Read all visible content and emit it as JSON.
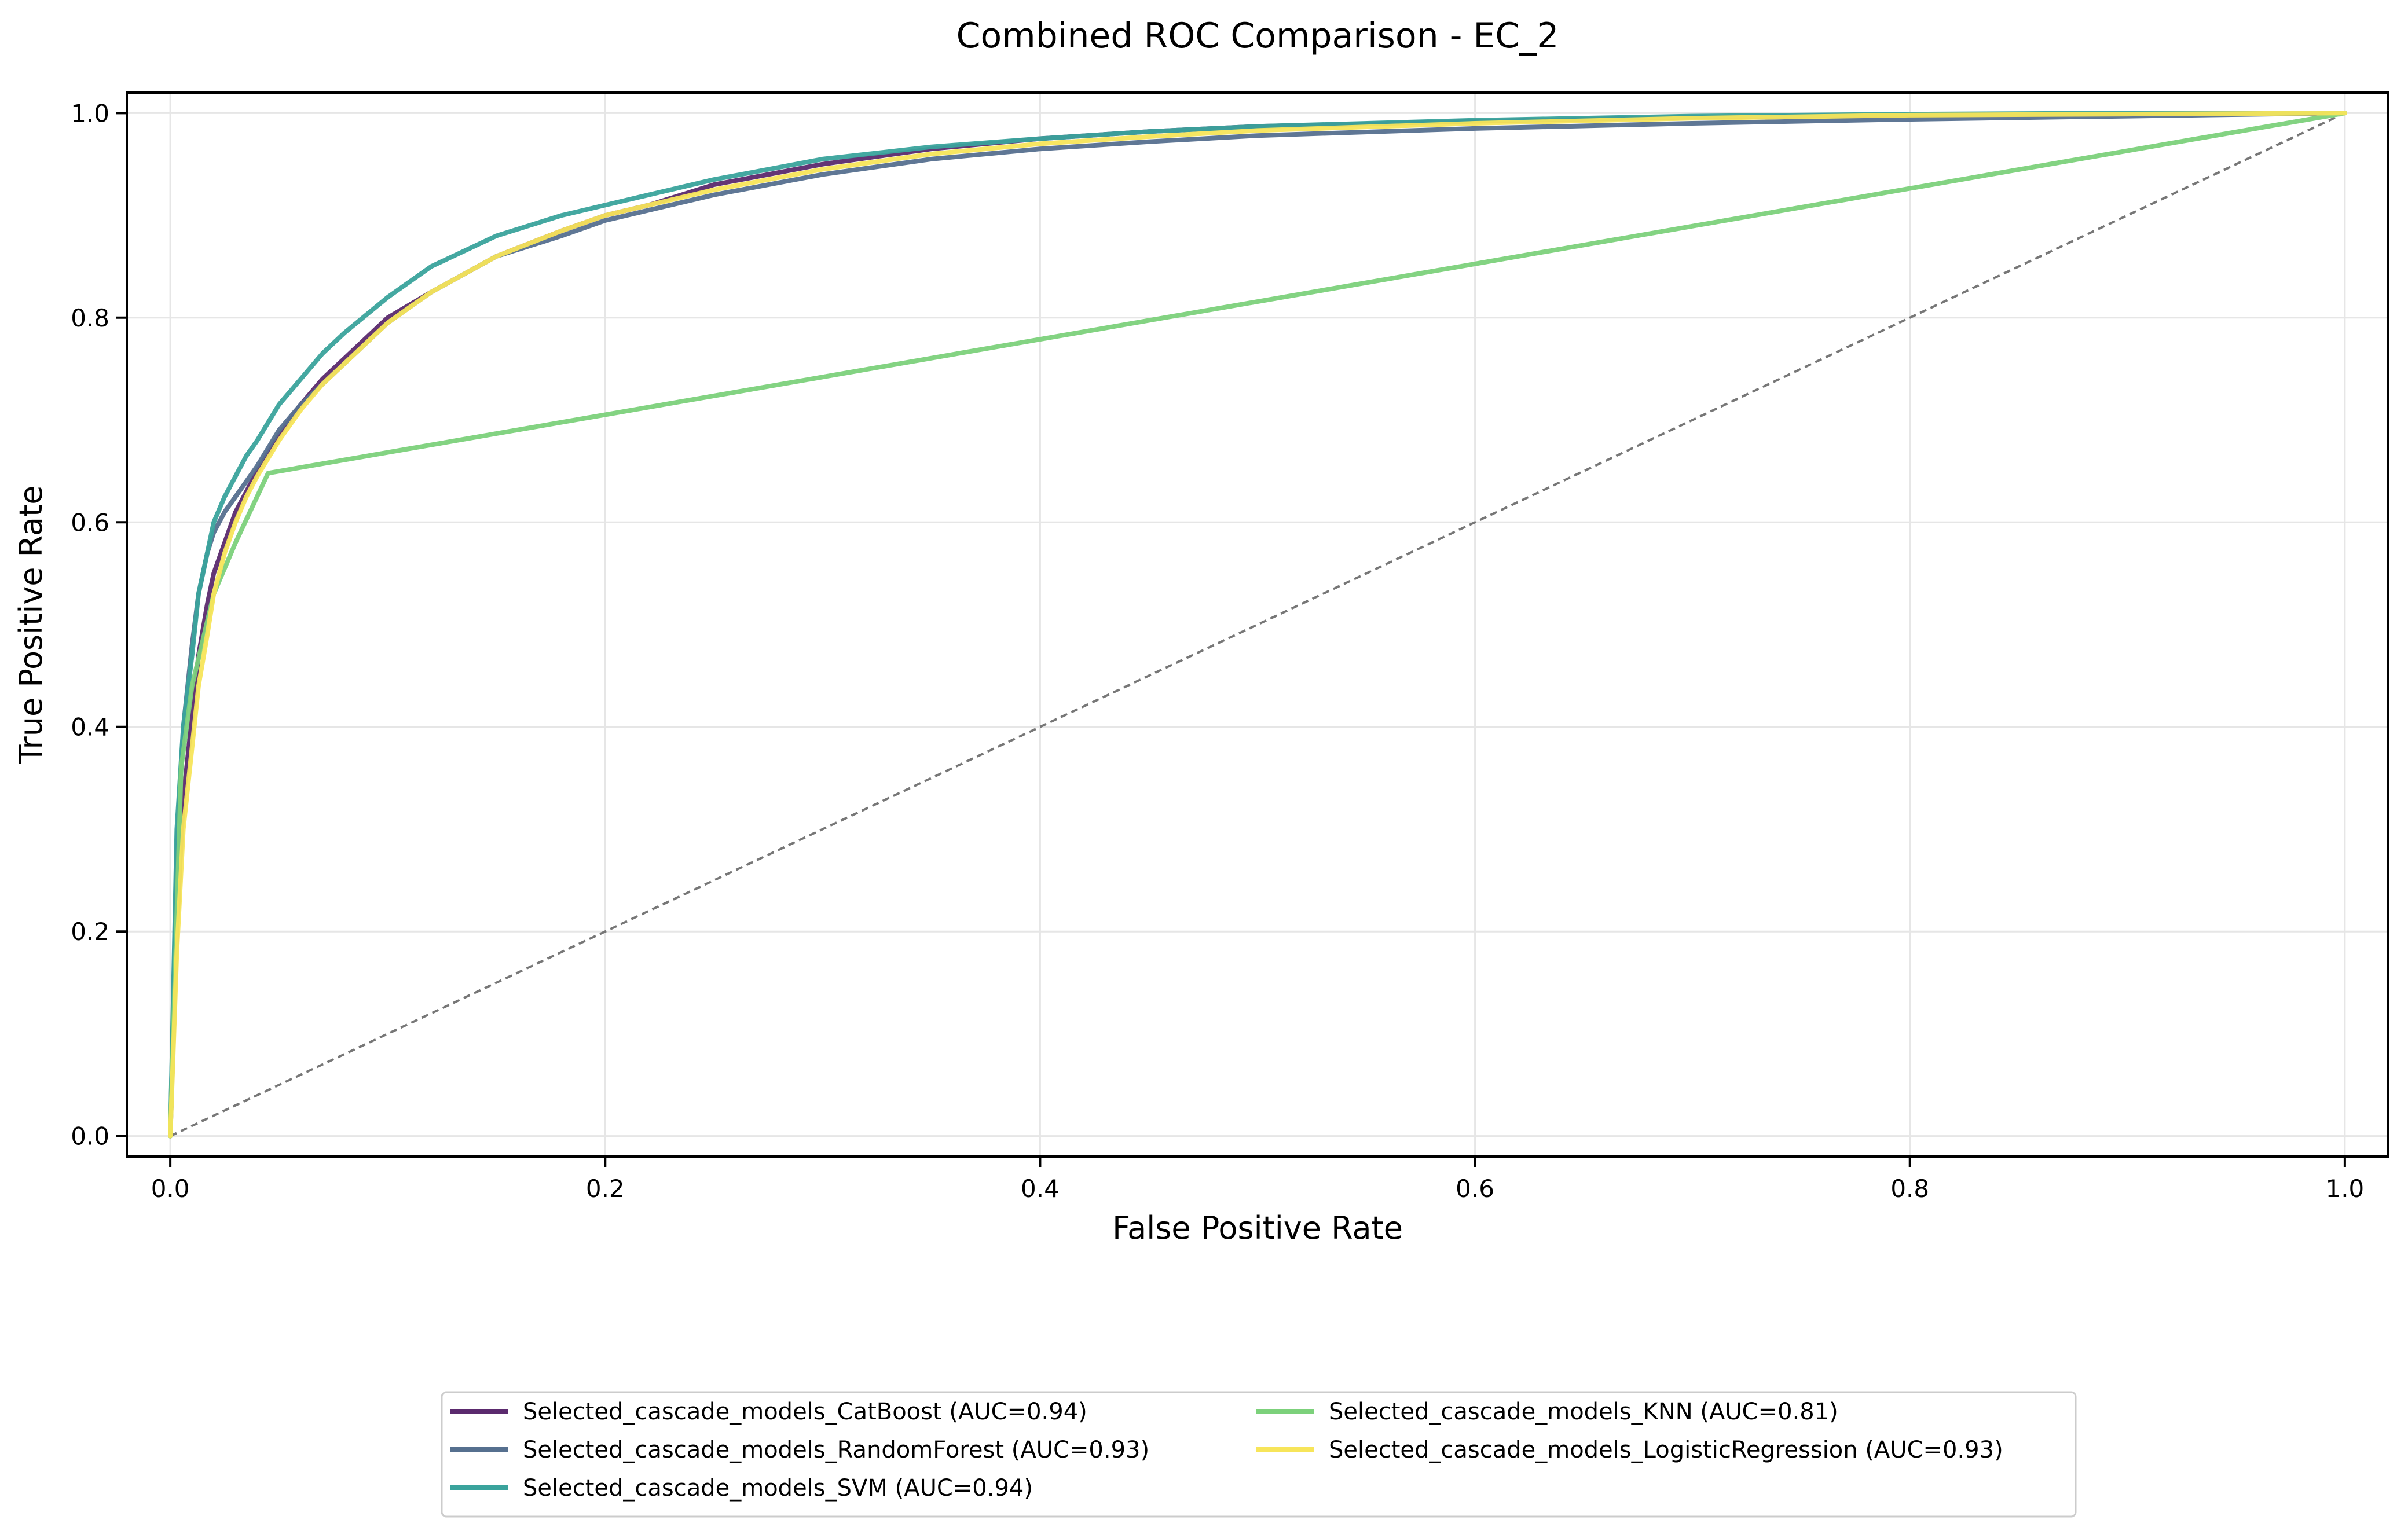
{
  "chart_data": {
    "type": "line",
    "title": "Combined ROC Comparison - EC_2",
    "xlabel": "False Positive Rate",
    "ylabel": "True Positive Rate",
    "xlim": [
      -0.02,
      1.02
    ],
    "ylim": [
      -0.02,
      1.02
    ],
    "x_ticks": [
      0.0,
      0.2,
      0.4,
      0.6,
      0.8,
      1.0
    ],
    "x_tick_labels": [
      "0.0",
      "0.2",
      "0.4",
      "0.6",
      "0.8",
      "1.0"
    ],
    "y_ticks": [
      0.0,
      0.2,
      0.4,
      0.6,
      0.8,
      1.0
    ],
    "y_tick_labels": [
      "0.0",
      "0.2",
      "0.4",
      "0.6",
      "0.8",
      "1.0"
    ],
    "grid": true,
    "legend_position": "bottom-center",
    "series": [
      {
        "name": "Selected_cascade_models_CatBoost (AUC=0.94)",
        "color": "#5b2a6e",
        "x": [
          0,
          0.003,
          0.006,
          0.01,
          0.013,
          0.017,
          0.02,
          0.025,
          0.03,
          0.035,
          0.04,
          0.05,
          0.06,
          0.07,
          0.08,
          0.1,
          0.12,
          0.15,
          0.18,
          0.2,
          0.22,
          0.25,
          0.3,
          0.35,
          0.4,
          0.45,
          0.5,
          0.6,
          0.7,
          0.8,
          0.9,
          1.0
        ],
        "y": [
          0,
          0.2,
          0.33,
          0.41,
          0.47,
          0.52,
          0.55,
          0.58,
          0.61,
          0.63,
          0.65,
          0.685,
          0.715,
          0.74,
          0.76,
          0.8,
          0.825,
          0.86,
          0.885,
          0.9,
          0.91,
          0.93,
          0.95,
          0.965,
          0.975,
          0.982,
          0.987,
          0.992,
          0.996,
          0.998,
          0.999,
          1.0
        ]
      },
      {
        "name": "Selected_cascade_models_RandomForest (AUC=0.93)",
        "color": "#56708f",
        "x": [
          0,
          0.003,
          0.006,
          0.01,
          0.013,
          0.017,
          0.02,
          0.025,
          0.03,
          0.035,
          0.04,
          0.05,
          0.06,
          0.07,
          0.08,
          0.1,
          0.12,
          0.15,
          0.18,
          0.2,
          0.22,
          0.25,
          0.3,
          0.35,
          0.4,
          0.45,
          0.5,
          0.6,
          0.7,
          0.8,
          0.9,
          1.0
        ],
        "y": [
          0,
          0.28,
          0.4,
          0.48,
          0.53,
          0.57,
          0.59,
          0.61,
          0.625,
          0.64,
          0.655,
          0.69,
          0.715,
          0.735,
          0.755,
          0.795,
          0.825,
          0.86,
          0.88,
          0.895,
          0.905,
          0.92,
          0.94,
          0.955,
          0.965,
          0.972,
          0.978,
          0.985,
          0.99,
          0.994,
          0.997,
          1.0
        ]
      },
      {
        "name": "Selected_cascade_models_SVM (AUC=0.94)",
        "color": "#3aa39c",
        "x": [
          0,
          0.003,
          0.006,
          0.01,
          0.013,
          0.017,
          0.02,
          0.025,
          0.03,
          0.035,
          0.04,
          0.05,
          0.06,
          0.07,
          0.08,
          0.1,
          0.12,
          0.15,
          0.18,
          0.2,
          0.22,
          0.25,
          0.3,
          0.35,
          0.4,
          0.45,
          0.5,
          0.6,
          0.7,
          0.8,
          0.9,
          1.0
        ],
        "y": [
          0,
          0.3,
          0.4,
          0.47,
          0.53,
          0.57,
          0.6,
          0.625,
          0.645,
          0.665,
          0.68,
          0.715,
          0.74,
          0.765,
          0.785,
          0.82,
          0.85,
          0.88,
          0.9,
          0.91,
          0.92,
          0.935,
          0.955,
          0.967,
          0.975,
          0.982,
          0.987,
          0.993,
          0.997,
          0.999,
          1.0,
          1.0
        ]
      },
      {
        "name": "Selected_cascade_models_KNN (AUC=0.81)",
        "color": "#7cd17b",
        "x": [
          0,
          0.005,
          0.01,
          0.02,
          0.03,
          0.045,
          1.0
        ],
        "y": [
          0,
          0.36,
          0.44,
          0.53,
          0.58,
          0.648,
          1.0
        ]
      },
      {
        "name": "Selected_cascade_models_LogisticRegression (AUC=0.93)",
        "color": "#f7e55a",
        "x": [
          0,
          0.003,
          0.006,
          0.01,
          0.013,
          0.017,
          0.02,
          0.025,
          0.03,
          0.035,
          0.04,
          0.05,
          0.06,
          0.07,
          0.08,
          0.1,
          0.12,
          0.15,
          0.18,
          0.2,
          0.22,
          0.25,
          0.3,
          0.35,
          0.4,
          0.45,
          0.5,
          0.6,
          0.7,
          0.8,
          0.9,
          1.0
        ],
        "y": [
          0,
          0.18,
          0.3,
          0.38,
          0.44,
          0.49,
          0.53,
          0.57,
          0.6,
          0.625,
          0.645,
          0.68,
          0.71,
          0.735,
          0.755,
          0.795,
          0.825,
          0.86,
          0.885,
          0.9,
          0.91,
          0.925,
          0.945,
          0.96,
          0.97,
          0.977,
          0.983,
          0.99,
          0.995,
          0.998,
          0.999,
          1.0
        ]
      }
    ],
    "reference_line": {
      "x": [
        0,
        1
      ],
      "y": [
        0,
        1
      ],
      "style": "dashed",
      "color": "#777777"
    }
  }
}
